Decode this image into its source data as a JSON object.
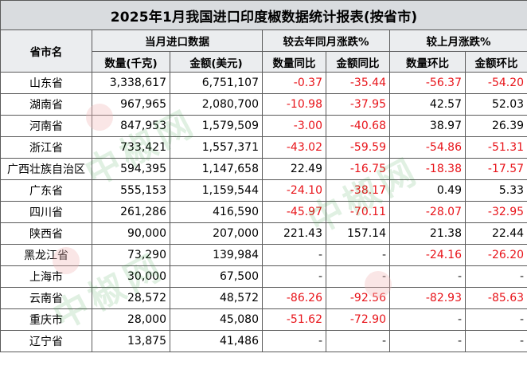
{
  "title": "2025年1月我国进口印度椒数据统计报表(按省市)",
  "headers": {
    "province": "省市名",
    "group_current": "当月进口数据",
    "group_yoy": "较去年同月涨跌%",
    "group_mom": "较上月涨跌%",
    "qty": "数量(千克)",
    "amount": "金额(美元)",
    "qty_yoy": "数量同比",
    "amount_yoy": "金额同比",
    "qty_mom": "数量环比",
    "amount_mom": "金额环比"
  },
  "watermark": "中椒网",
  "rows": [
    {
      "province": "山东省",
      "qty": "3,338,617",
      "amount": "6,751,107",
      "qty_yoy": "-0.37",
      "amount_yoy": "-35.44",
      "qty_mom": "-56.37",
      "amount_mom": "-54.20"
    },
    {
      "province": "湖南省",
      "qty": "967,965",
      "amount": "2,080,700",
      "qty_yoy": "-10.98",
      "amount_yoy": "-37.95",
      "qty_mom": "42.57",
      "amount_mom": "52.03"
    },
    {
      "province": "河南省",
      "qty": "847,953",
      "amount": "1,579,509",
      "qty_yoy": "-3.00",
      "amount_yoy": "-40.68",
      "qty_mom": "38.97",
      "amount_mom": "26.39"
    },
    {
      "province": "浙江省",
      "qty": "733,421",
      "amount": "1,557,371",
      "qty_yoy": "-43.02",
      "amount_yoy": "-59.59",
      "qty_mom": "-54.86",
      "amount_mom": "-51.31"
    },
    {
      "province": "广西壮族自治区",
      "qty": "594,395",
      "amount": "1,147,658",
      "qty_yoy": "22.49",
      "amount_yoy": "-16.75",
      "qty_mom": "-18.38",
      "amount_mom": "-17.57"
    },
    {
      "province": "广东省",
      "qty": "555,153",
      "amount": "1,159,544",
      "qty_yoy": "-24.10",
      "amount_yoy": "-38.17",
      "qty_mom": "0.49",
      "amount_mom": "5.33"
    },
    {
      "province": "四川省",
      "qty": "261,286",
      "amount": "416,590",
      "qty_yoy": "-45.97",
      "amount_yoy": "-70.11",
      "qty_mom": "-28.07",
      "amount_mom": "-32.95"
    },
    {
      "province": "陕西省",
      "qty": "90,000",
      "amount": "207,000",
      "qty_yoy": "221.43",
      "amount_yoy": "157.14",
      "qty_mom": "21.38",
      "amount_mom": "22.44"
    },
    {
      "province": "黑龙江省",
      "qty": "73,290",
      "amount": "139,984",
      "qty_yoy": "-",
      "amount_yoy": "-",
      "qty_mom": "-24.16",
      "amount_mom": "-26.20"
    },
    {
      "province": "上海市",
      "qty": "30,000",
      "amount": "67,500",
      "qty_yoy": "-",
      "amount_yoy": "-",
      "qty_mom": "-",
      "amount_mom": "-"
    },
    {
      "province": "云南省",
      "qty": "28,572",
      "amount": "48,572",
      "qty_yoy": "-86.26",
      "amount_yoy": "-92.56",
      "qty_mom": "-82.93",
      "amount_mom": "-85.63"
    },
    {
      "province": "重庆市",
      "qty": "28,000",
      "amount": "45,080",
      "qty_yoy": "-51.62",
      "amount_yoy": "-72.90",
      "qty_mom": "-",
      "amount_mom": "-"
    },
    {
      "province": "辽宁省",
      "qty": "13,875",
      "amount": "41,486",
      "qty_yoy": "-",
      "amount_yoy": "-",
      "qty_mom": "-",
      "amount_mom": "-"
    }
  ],
  "colors": {
    "negative": "#e8141a",
    "header_bg": "#ebedef",
    "title_bg": "#d9dcdf",
    "grid": "#5a5a5a",
    "watermark": "#2b9b3a"
  }
}
